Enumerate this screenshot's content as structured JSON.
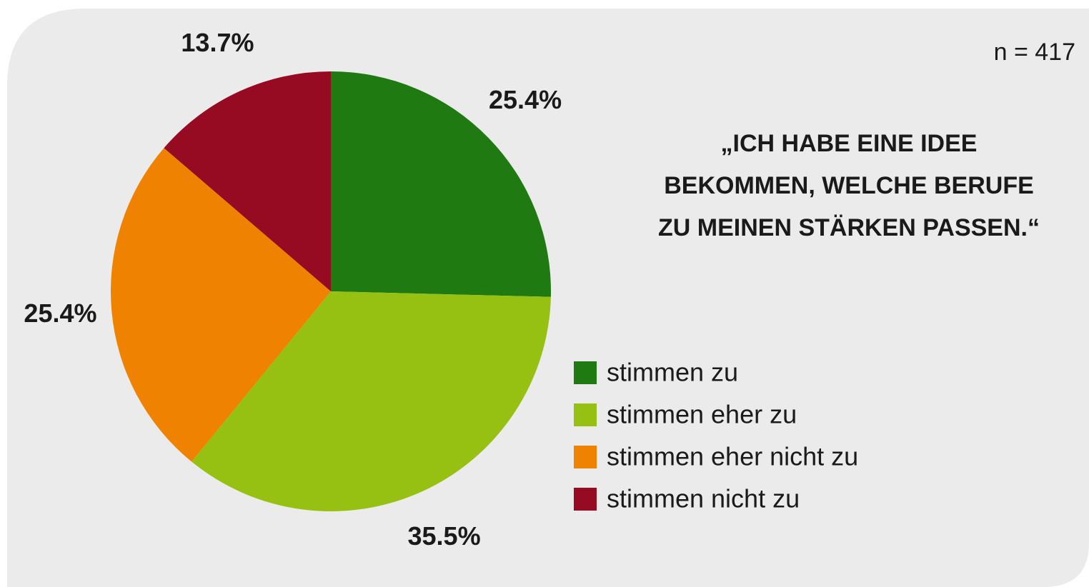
{
  "chart_data": {
    "type": "pie",
    "title_lines": [
      "„ICH HABE EINE IDEE",
      "BEKOMMEN, WELCHE BERUFE",
      "ZU MEINEN STÄRKEN PASSEN.“"
    ],
    "annotation": "n = 417",
    "categories": [
      "stimmen zu",
      "stimmen eher zu",
      "stimmen eher nicht zu",
      "stimmen nicht zu"
    ],
    "values": [
      25.4,
      35.5,
      25.4,
      13.7
    ],
    "value_labels": [
      "25.4%",
      "35.5%",
      "25.4%",
      "13.7%"
    ],
    "colors": [
      "#1f7a12",
      "#96c012",
      "#ef8200",
      "#960a22"
    ],
    "legend": "right"
  }
}
